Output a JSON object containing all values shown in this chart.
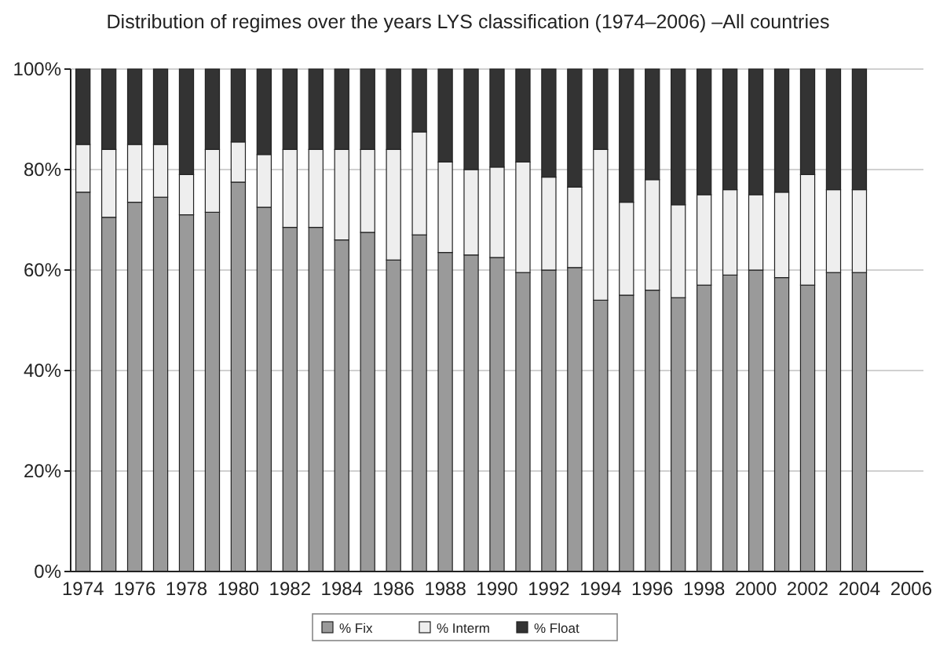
{
  "chart_data": {
    "type": "bar",
    "title": "Distribution of regimes over the years LYS classification (1974–2006) –All countries",
    "stacked": true,
    "categories": [
      "1974",
      null,
      "1976",
      null,
      "1978",
      null,
      "1980",
      null,
      "1982",
      null,
      "1984",
      null,
      "1986",
      null,
      "1988",
      null,
      "1990",
      null,
      "1992",
      null,
      "1994",
      null,
      "1996",
      null,
      "1998",
      null,
      "2000",
      null,
      "2002",
      null,
      "2004",
      null,
      "2006"
    ],
    "series": [
      {
        "name": "% Fix",
        "color": "#9a9a9a",
        "values": [
          75.5,
          70.5,
          73.5,
          74.5,
          71,
          71.5,
          77.5,
          72.5,
          68.5,
          68.5,
          66,
          67.5,
          62,
          67,
          63.5,
          63,
          62.5,
          59.5,
          60,
          60.5,
          54,
          55,
          56,
          54.5,
          57,
          59,
          60,
          58.5,
          57,
          59.5,
          59.5,
          null,
          null
        ]
      },
      {
        "name": "% Interm",
        "color": "#eeeeee",
        "values": [
          9.5,
          13.5,
          11.5,
          10.5,
          8,
          12.5,
          8,
          10.5,
          15.5,
          15.5,
          18,
          16.5,
          22,
          20.5,
          18,
          17,
          18,
          22,
          18.5,
          16,
          30,
          18.5,
          22,
          18.5,
          18,
          17,
          15,
          17,
          22,
          16.5,
          16.5,
          null,
          null
        ]
      },
      {
        "name": "% Float",
        "color": "#333333",
        "values": [
          15,
          16,
          15,
          15,
          21,
          16,
          14.5,
          17,
          16,
          16,
          16,
          16,
          16,
          12.5,
          18.5,
          20,
          19.5,
          18.5,
          21.5,
          23.5,
          16,
          26.5,
          22,
          27,
          25,
          24,
          25,
          24.5,
          21,
          24,
          24,
          null,
          null
        ]
      }
    ],
    "ylim": [
      0,
      100
    ],
    "yticks": [
      {
        "value": 0,
        "label": "0%"
      },
      {
        "value": 20,
        "label": "20%"
      },
      {
        "value": 40,
        "label": "40%"
      },
      {
        "value": 60,
        "label": "60%"
      },
      {
        "value": 80,
        "label": "80%"
      },
      {
        "value": 100,
        "label": "100%"
      }
    ],
    "grid": "y",
    "legend": "bottom"
  }
}
